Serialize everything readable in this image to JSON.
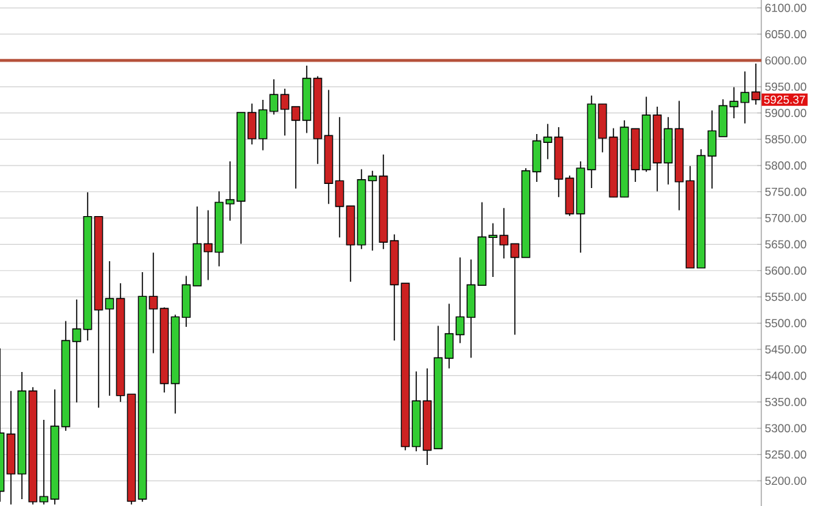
{
  "chart_data": {
    "type": "candlestick",
    "categories": [
      null,
      null,
      null,
      null,
      null,
      null,
      null,
      null,
      null,
      null,
      null,
      null,
      null,
      null,
      null,
      null,
      null,
      null,
      null,
      null,
      null,
      null,
      null,
      null,
      null,
      null,
      null,
      null,
      null,
      null,
      null,
      null,
      null,
      null,
      null,
      null,
      null,
      null,
      null,
      null,
      null,
      null,
      null,
      null,
      null,
      null,
      null,
      null,
      null,
      null,
      null,
      null,
      null,
      null,
      null,
      null,
      null,
      null,
      null,
      null,
      null,
      null,
      null,
      null,
      null,
      null,
      null,
      null,
      null,
      null
    ],
    "ohlc": [
      [
        5180,
        5452,
        5160,
        5291
      ],
      [
        5289,
        5371,
        5155,
        5213
      ],
      [
        5213,
        5407,
        5165,
        5371
      ],
      [
        5371,
        5378,
        5155,
        5160
      ],
      [
        5160,
        5316,
        5155,
        5170
      ],
      [
        5165,
        5374,
        5155,
        5304
      ],
      [
        5303,
        5504,
        5295,
        5467
      ],
      [
        5465,
        5545,
        5349,
        5489
      ],
      [
        5488,
        5749,
        5467,
        5703
      ],
      [
        5703,
        5703,
        5339,
        5525
      ],
      [
        5527,
        5618,
        5362,
        5547
      ],
      [
        5547,
        5576,
        5350,
        5362
      ],
      [
        5365,
        5365,
        5155,
        5161
      ],
      [
        5165,
        5597,
        5160,
        5551
      ],
      [
        5551,
        5634,
        5443,
        5527
      ],
      [
        5528,
        5530,
        5368,
        5385
      ],
      [
        5385,
        5516,
        5328,
        5512
      ],
      [
        5511,
        5590,
        5493,
        5573
      ],
      [
        5571,
        5722,
        5571,
        5651
      ],
      [
        5651,
        5715,
        5582,
        5636
      ],
      [
        5635,
        5751,
        5608,
        5730
      ],
      [
        5727,
        5808,
        5695,
        5735
      ],
      [
        5732,
        5901,
        5651,
        5901
      ],
      [
        5901,
        5918,
        5840,
        5851
      ],
      [
        5851,
        5925,
        5829,
        5906
      ],
      [
        5903,
        5964,
        5897,
        5935
      ],
      [
        5935,
        5946,
        5857,
        5907
      ],
      [
        5912,
        5912,
        5756,
        5886
      ],
      [
        5886,
        5990,
        5862,
        5966
      ],
      [
        5966,
        5970,
        5803,
        5851
      ],
      [
        5857,
        5944,
        5727,
        5766
      ],
      [
        5771,
        5892,
        5663,
        5722
      ],
      [
        5723,
        5723,
        5579,
        5649
      ],
      [
        5649,
        5793,
        5641,
        5773
      ],
      [
        5771,
        5790,
        5638,
        5780
      ],
      [
        5780,
        5821,
        5641,
        5654
      ],
      [
        5657,
        5669,
        5467,
        5573
      ],
      [
        5576,
        5576,
        5258,
        5265
      ],
      [
        5265,
        5408,
        5256,
        5352
      ],
      [
        5352,
        5414,
        5230,
        5258
      ],
      [
        5261,
        5495,
        5261,
        5434
      ],
      [
        5433,
        5537,
        5414,
        5480
      ],
      [
        5478,
        5625,
        5462,
        5512
      ],
      [
        5511,
        5621,
        5434,
        5573
      ],
      [
        5572,
        5730,
        5572,
        5664
      ],
      [
        5663,
        5690,
        5588,
        5667
      ],
      [
        5667,
        5719,
        5623,
        5649
      ],
      [
        5651,
        5651,
        5478,
        5625
      ],
      [
        5625,
        5795,
        5625,
        5790
      ],
      [
        5788,
        5860,
        5769,
        5847
      ],
      [
        5844,
        5879,
        5812,
        5854
      ],
      [
        5854,
        5873,
        5740,
        5774
      ],
      [
        5776,
        5781,
        5704,
        5708
      ],
      [
        5708,
        5808,
        5634,
        5795
      ],
      [
        5792,
        5933,
        5757,
        5917
      ],
      [
        5917,
        5917,
        5825,
        5852
      ],
      [
        5854,
        5871,
        5740,
        5740
      ],
      [
        5740,
        5886,
        5740,
        5873
      ],
      [
        5870,
        5870,
        5769,
        5792
      ],
      [
        5792,
        5931,
        5788,
        5896
      ],
      [
        5896,
        5912,
        5751,
        5805
      ],
      [
        5805,
        5892,
        5764,
        5870
      ],
      [
        5870,
        5923,
        5715,
        5769
      ],
      [
        5771,
        5799,
        5605,
        5605
      ],
      [
        5605,
        5831,
        5605,
        5819
      ],
      [
        5818,
        5905,
        5756,
        5866
      ],
      [
        5855,
        5926,
        5855,
        5914
      ],
      [
        5912,
        5949,
        5890,
        5922
      ],
      [
        5920,
        5979,
        5880,
        5939
      ],
      [
        5940,
        5994,
        5916,
        5925.37
      ]
    ],
    "colors": [
      "#33cc33",
      "#cc2222",
      "#33cc33",
      "#cc2222",
      "#33cc33",
      "#33cc33",
      "#33cc33",
      "#33cc33",
      "#33cc33",
      "#cc2222",
      "#33cc33",
      "#cc2222",
      "#cc2222",
      "#33cc33",
      "#cc2222",
      "#cc2222",
      "#33cc33",
      "#33cc33",
      "#33cc33",
      "#cc2222",
      "#33cc33",
      "#33cc33",
      "#33cc33",
      "#cc2222",
      "#33cc33",
      "#33cc33",
      "#cc2222",
      "#cc2222",
      "#33cc33",
      "#cc2222",
      "#cc2222",
      "#cc2222",
      "#cc2222",
      "#33cc33",
      "#33cc33",
      "#cc2222",
      "#cc2222",
      "#cc2222",
      "#33cc33",
      "#cc2222",
      "#33cc33",
      "#33cc33",
      "#33cc33",
      "#33cc33",
      "#33cc33",
      "#33cc33",
      "#cc2222",
      "#cc2222",
      "#33cc33",
      "#33cc33",
      "#33cc33",
      "#cc2222",
      "#cc2222",
      "#33cc33",
      "#33cc33",
      "#cc2222",
      "#cc2222",
      "#33cc33",
      "#cc2222",
      "#33cc33",
      "#cc2222",
      "#33cc33",
      "#cc2222",
      "#cc2222",
      "#33cc33",
      "#33cc33",
      "#33cc33",
      "#33cc33",
      "#33cc33",
      "#cc2222"
    ],
    "ylim": [
      5152,
      6115
    ],
    "yticks": [
      {
        "value": 5200,
        "label": "5200.00"
      },
      {
        "value": 5250,
        "label": "5250.00"
      },
      {
        "value": 5300,
        "label": "5300.00"
      },
      {
        "value": 5350,
        "label": "5350.00"
      },
      {
        "value": 5400,
        "label": "5400.00"
      },
      {
        "value": 5450,
        "label": "5450.00"
      },
      {
        "value": 5500,
        "label": "5500.00"
      },
      {
        "value": 5550,
        "label": "5550.00"
      },
      {
        "value": 5600,
        "label": "5600.00"
      },
      {
        "value": 5650,
        "label": "5650.00"
      },
      {
        "value": 5700,
        "label": "5700.00"
      },
      {
        "value": 5750,
        "label": "5750.00"
      },
      {
        "value": 5800,
        "label": "5800.00"
      },
      {
        "value": 5850,
        "label": "5850.00"
      },
      {
        "value": 5900,
        "label": "5900.00"
      },
      {
        "value": 5950,
        "label": "5950.00"
      },
      {
        "value": 6000,
        "label": "6000.00"
      },
      {
        "value": 6050,
        "label": "6050.00"
      },
      {
        "value": 6100,
        "label": "6100.00"
      }
    ],
    "grid": "y",
    "tick_labels": "y",
    "ref_lines": [
      {
        "axis": "y",
        "value": 6000,
        "color": "#b5503a"
      }
    ],
    "annotations": [
      "5925.37"
    ]
  }
}
